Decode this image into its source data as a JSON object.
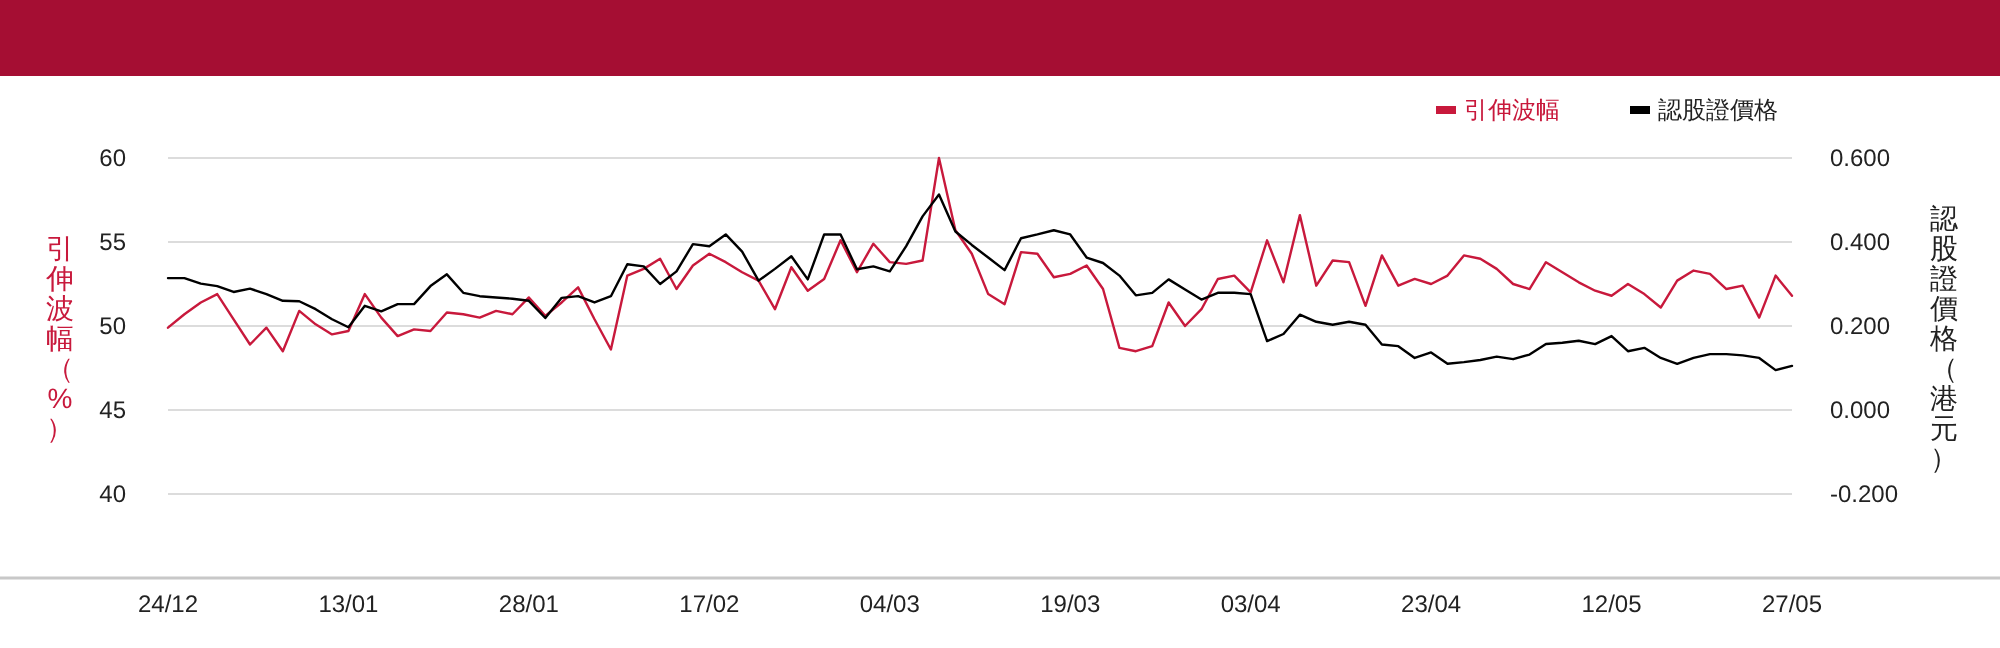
{
  "chart_data": {
    "type": "line",
    "ylabel": "引伸波幅（%）",
    "y2label": "認股證價格（港元）",
    "categories": [
      "24/12",
      null,
      null,
      null,
      null,
      null,
      null,
      null,
      null,
      null,
      null,
      "13/01",
      null,
      null,
      null,
      null,
      null,
      null,
      null,
      null,
      null,
      null,
      "28/01",
      null,
      null,
      null,
      null,
      null,
      null,
      null,
      null,
      null,
      null,
      "17/02",
      null,
      null,
      null,
      null,
      null,
      null,
      null,
      null,
      null,
      null,
      "04/03",
      null,
      null,
      null,
      null,
      null,
      null,
      null,
      null,
      null,
      null,
      "19/03",
      null,
      null,
      null,
      null,
      null,
      null,
      null,
      null,
      null,
      null,
      "03/04",
      null,
      null,
      null,
      null,
      null,
      null,
      null,
      null,
      null,
      null,
      "23/04",
      null,
      null,
      null,
      null,
      null,
      null,
      null,
      null,
      null,
      null,
      "12/05",
      null,
      null,
      null,
      null,
      null,
      null,
      null,
      null,
      null,
      null,
      "27/05"
    ],
    "series": [
      {
        "name": "引伸波幅",
        "color": "#c8193c",
        "values": [
          49.9,
          50.7,
          51.4,
          51.9,
          50.4,
          48.9,
          49.9,
          48.5,
          50.9,
          50.1,
          49.5,
          49.7,
          51.9,
          50.5,
          49.4,
          49.8,
          49.7,
          50.8,
          50.7,
          50.5,
          50.9,
          50.7,
          51.7,
          50.6,
          51.4,
          52.3,
          50.4,
          48.6,
          53.0,
          53.4,
          54.0,
          52.2,
          53.6,
          54.3,
          53.8,
          53.2,
          52.7,
          51.0,
          53.5,
          52.1,
          52.8,
          55.1,
          53.2,
          54.9,
          53.8,
          53.7,
          53.9,
          60.0,
          55.7,
          54.3,
          51.9,
          51.3,
          54.4,
          54.3,
          52.9,
          53.1,
          53.6,
          52.2,
          48.7,
          48.5,
          48.8,
          51.4,
          50.0,
          51.0,
          52.8,
          53.0,
          52.0,
          55.1,
          52.6,
          56.6,
          52.4,
          53.9,
          53.8,
          51.2,
          54.2,
          52.4,
          52.8,
          52.5,
          53.0,
          54.2,
          54.0,
          53.4,
          52.5,
          52.2,
          53.8,
          53.2,
          52.6,
          52.1,
          51.8,
          52.5,
          51.9,
          51.1,
          52.7,
          53.3,
          53.1,
          52.2,
          52.4,
          50.5,
          53.0,
          51.8
        ]
      },
      {
        "name": "認股證價格",
        "color": "#000000",
        "axis": "y2",
        "values": [
          0.314,
          0.314,
          0.301,
          0.295,
          0.281,
          0.289,
          0.276,
          0.26,
          0.259,
          0.24,
          0.216,
          0.197,
          0.248,
          0.235,
          0.252,
          0.252,
          0.295,
          0.323,
          0.279,
          0.271,
          0.268,
          0.265,
          0.26,
          0.219,
          0.267,
          0.271,
          0.256,
          0.271,
          0.347,
          0.342,
          0.3,
          0.33,
          0.395,
          0.39,
          0.418,
          0.377,
          0.308,
          0.336,
          0.366,
          0.311,
          0.418,
          0.418,
          0.335,
          0.342,
          0.33,
          0.39,
          0.461,
          0.513,
          0.425,
          0.393,
          0.363,
          0.333,
          0.409,
          0.418,
          0.428,
          0.418,
          0.363,
          0.35,
          0.32,
          0.273,
          0.279,
          0.311,
          0.287,
          0.263,
          0.279,
          0.279,
          0.276,
          0.164,
          0.181,
          0.227,
          0.21,
          0.203,
          0.21,
          0.203,
          0.156,
          0.152,
          0.124,
          0.137,
          0.11,
          0.114,
          0.119,
          0.127,
          0.121,
          0.132,
          0.157,
          0.16,
          0.165,
          0.157,
          0.176,
          0.14,
          0.148,
          0.124,
          0.11,
          0.124,
          0.133,
          0.133,
          0.13,
          0.124,
          0.095,
          0.105
        ]
      }
    ],
    "ylim": [
      35,
      60
    ],
    "yticks": [
      40,
      45,
      50,
      55,
      60
    ],
    "y2lim": [
      -0.4,
      0.6
    ],
    "y2ticks": [
      {
        "value": -0.2,
        "label": "-0.200"
      },
      {
        "value": 0,
        "label": "0.000"
      },
      {
        "value": 0.2,
        "label": "0.200"
      },
      {
        "value": 0.4,
        "label": "0.400"
      },
      {
        "value": 0.6,
        "label": "0.600"
      }
    ],
    "grid": "y",
    "legend": "top right",
    "marker": "none",
    "line_style": "solid"
  }
}
